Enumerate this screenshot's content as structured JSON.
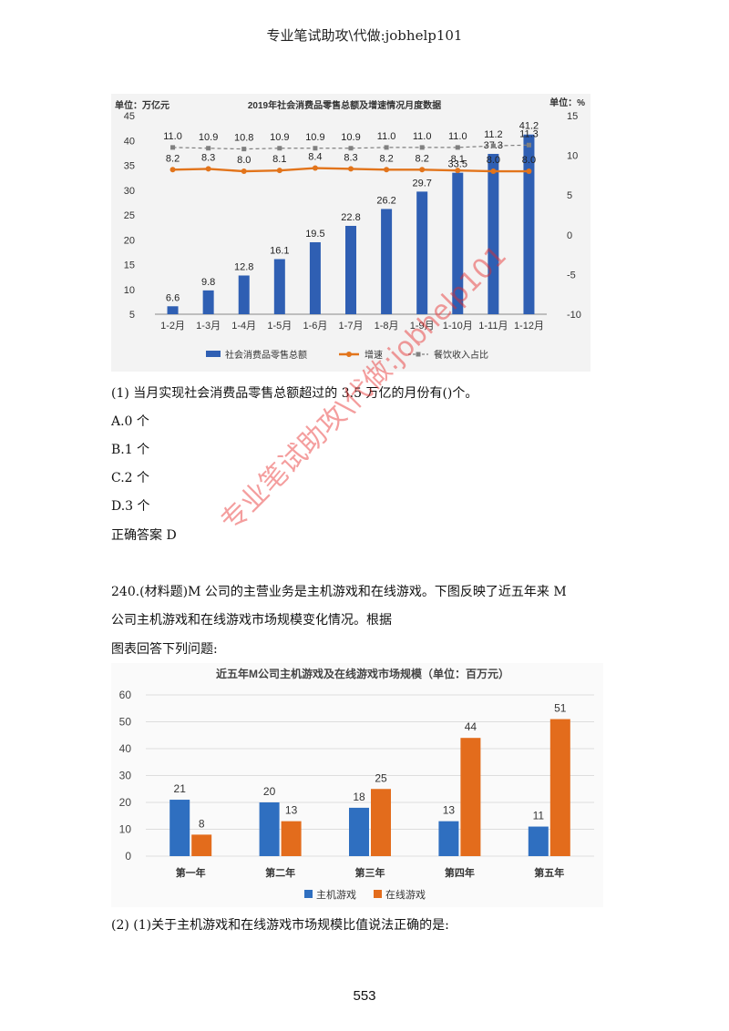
{
  "header": "专业笔试助攻\\代做:jobhelp101",
  "chart1": {
    "title": "2019年社会消费品零售总额及增速情况月度数据",
    "unit_left": "单位：万亿元",
    "unit_right": "单位：%",
    "legend": [
      "社会消费品零售总额",
      "增速",
      "餐饮收入占比"
    ],
    "colors": {
      "bar": "#2f5fb3",
      "growth": "#e2741b",
      "dining": "#808080"
    },
    "chart_data": {
      "type": "bar",
      "title": "2019年社会消费品零售总额及增速情况月度数据",
      "categories": [
        "1-2月",
        "1-3月",
        "1-4月",
        "1-5月",
        "1-6月",
        "1-7月",
        "1-8月",
        "1-9月",
        "1-10月",
        "1-11月",
        "1-12月"
      ],
      "series": [
        {
          "name": "社会消费品零售总额",
          "axis": "left",
          "values": [
            6.6,
            9.8,
            12.8,
            16.1,
            19.5,
            22.8,
            26.2,
            29.7,
            33.5,
            37.3,
            41.2
          ]
        },
        {
          "name": "增速",
          "axis": "right",
          "values": [
            8.2,
            8.3,
            8.0,
            8.1,
            8.4,
            8.3,
            8.2,
            8.2,
            8.1,
            8.0,
            8.0
          ]
        },
        {
          "name": "餐饮收入占比",
          "axis": "right",
          "values": [
            11.0,
            10.9,
            10.8,
            10.9,
            10.9,
            10.9,
            11.0,
            11.0,
            11.0,
            11.2,
            11.3
          ]
        }
      ],
      "ylim_left": [
        5,
        45
      ],
      "yticks_left": [
        5,
        10,
        15,
        20,
        25,
        30,
        35,
        40,
        45
      ],
      "yticks_left_labels": [
        "5",
        "10",
        "15",
        "20",
        "25",
        "30",
        "35",
        "40",
        "45"
      ],
      "ylim_right": [
        -10,
        15
      ],
      "yticks_right": [
        -10,
        -5,
        0,
        5,
        10,
        15
      ],
      "legend_position": "bottom"
    }
  },
  "question1": {
    "stem": "(1) 当月实现社会消费品零售总额超过的 3.5 万亿的月份有()个。",
    "options": [
      "A.0 个",
      "B.1 个",
      "C.2 个",
      "D.3 个"
    ],
    "answer": "正确答案 D"
  },
  "material": {
    "line1": "240.(材料题)M 公司的主营业务是主机游戏和在线游戏。下图反映了近五年来 M",
    "line2": "公司主机游戏和在线游戏市场规模变化情况。根据",
    "line3": "图表回答下列问题:"
  },
  "chart2": {
    "title": "近五年M公司主机游戏及在线游戏市场规模（单位：百万元）",
    "colors": {
      "console": "#2f6fc0",
      "online": "#e36c1c"
    },
    "chart_data": {
      "type": "bar",
      "title": "近五年M公司主机游戏及在线游戏市场规模（单位：百万元）",
      "categories": [
        "第一年",
        "第二年",
        "第三年",
        "第四年",
        "第五年"
      ],
      "series": [
        {
          "name": "主机游戏",
          "values": [
            21,
            20,
            18,
            13,
            11
          ]
        },
        {
          "name": "在线游戏",
          "values": [
            8,
            13,
            25,
            44,
            51
          ]
        }
      ],
      "ylim": [
        0,
        60
      ],
      "yticks": [
        0,
        10,
        20,
        30,
        40,
        50,
        60
      ],
      "grid": true,
      "legend_position": "bottom"
    }
  },
  "question2": {
    "stem": "(2) (1)关于主机游戏和在线游戏市场规模比值说法正确的是:"
  },
  "page_number": "553",
  "watermark": "专业笔试助攻\\代做:jobhelp101"
}
